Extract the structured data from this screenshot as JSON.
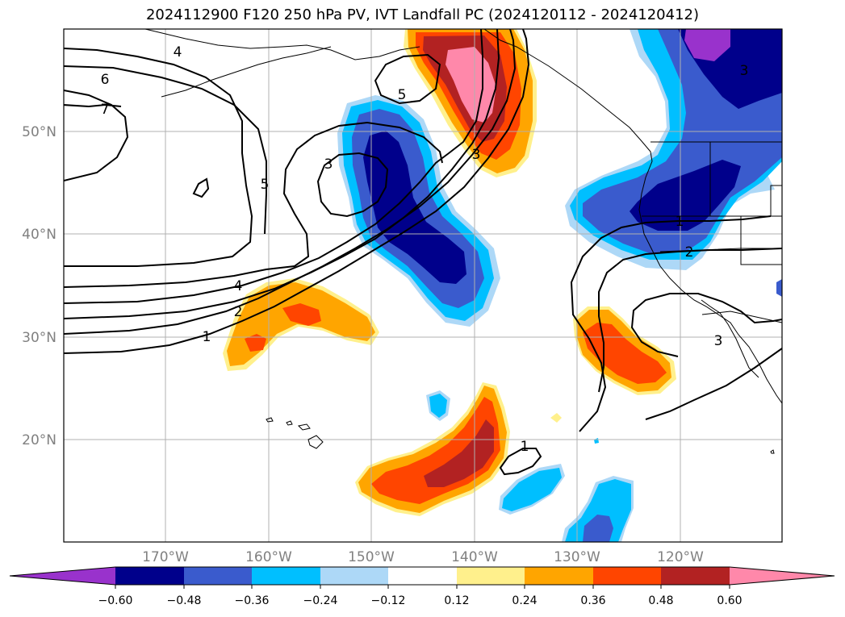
{
  "title": "2024112900 F120 250 hPa PV, IVT Landfall PC (2024120112 - 2024120412)",
  "lat_labels": [
    "50°N",
    "40°N",
    "30°N",
    "20°N"
  ],
  "lon_labels": [
    "170°W",
    "160°W",
    "150°W",
    "140°W",
    "130°W",
    "120°W"
  ],
  "colorbar": {
    "ticks": [
      "−0.60",
      "−0.48",
      "−0.36",
      "−0.24",
      "−0.12",
      "0.12",
      "0.24",
      "0.36",
      "0.48",
      "0.60"
    ],
    "colors": [
      "#9932cc",
      "#00008b",
      "#3a5bcd",
      "#00bfff",
      "#add8f7",
      "#ffffff",
      "#fff08c",
      "#ffa500",
      "#ff4500",
      "#b22222",
      "#ff88aa"
    ]
  },
  "contour_labels": [
    "4",
    "6",
    "7",
    "5",
    "3",
    "5",
    "3",
    "4",
    "2",
    "1",
    "3",
    "1",
    "2",
    "1",
    "3",
    "1"
  ],
  "shading_colors": {
    "purple": "#9932cc",
    "navy": "#00008b",
    "royal": "#3a5bcd",
    "sky": "#00bfff",
    "pale_blue": "#add8f7",
    "yellow": "#fff08c",
    "orange": "#ffa500",
    "red_orange": "#ff4500",
    "firebrick": "#b22222",
    "pink": "#ff88aa"
  }
}
